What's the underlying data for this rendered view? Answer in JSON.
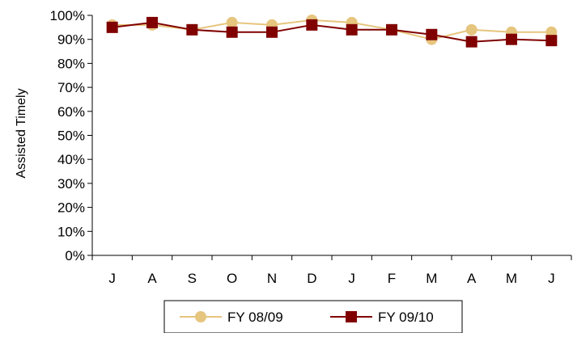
{
  "chart_data": {
    "type": "line",
    "title": "",
    "xlabel": "",
    "ylabel": "Assisted Timely",
    "categories": [
      "J",
      "A",
      "S",
      "O",
      "N",
      "D",
      "J",
      "F",
      "M",
      "A",
      "M",
      "J"
    ],
    "ylim": [
      0,
      100
    ],
    "yticks": [
      0,
      10,
      20,
      30,
      40,
      50,
      60,
      70,
      80,
      90,
      100
    ],
    "ytick_labels": [
      "0%",
      "10%",
      "20%",
      "30%",
      "40%",
      "50%",
      "60%",
      "70%",
      "80%",
      "90%",
      "100%"
    ],
    "grid": false,
    "legend_position": "bottom",
    "series": [
      {
        "name": "FY 08/09",
        "color": "#E6C57E",
        "marker": "circle",
        "values": [
          96,
          96,
          94,
          97,
          96,
          98,
          97,
          94,
          90,
          94,
          93,
          93
        ]
      },
      {
        "name": "FY 09/10",
        "color": "#800000",
        "marker": "square",
        "values": [
          95,
          97,
          94,
          93,
          93,
          96,
          94,
          94,
          92,
          89,
          90,
          89.5
        ]
      }
    ]
  }
}
